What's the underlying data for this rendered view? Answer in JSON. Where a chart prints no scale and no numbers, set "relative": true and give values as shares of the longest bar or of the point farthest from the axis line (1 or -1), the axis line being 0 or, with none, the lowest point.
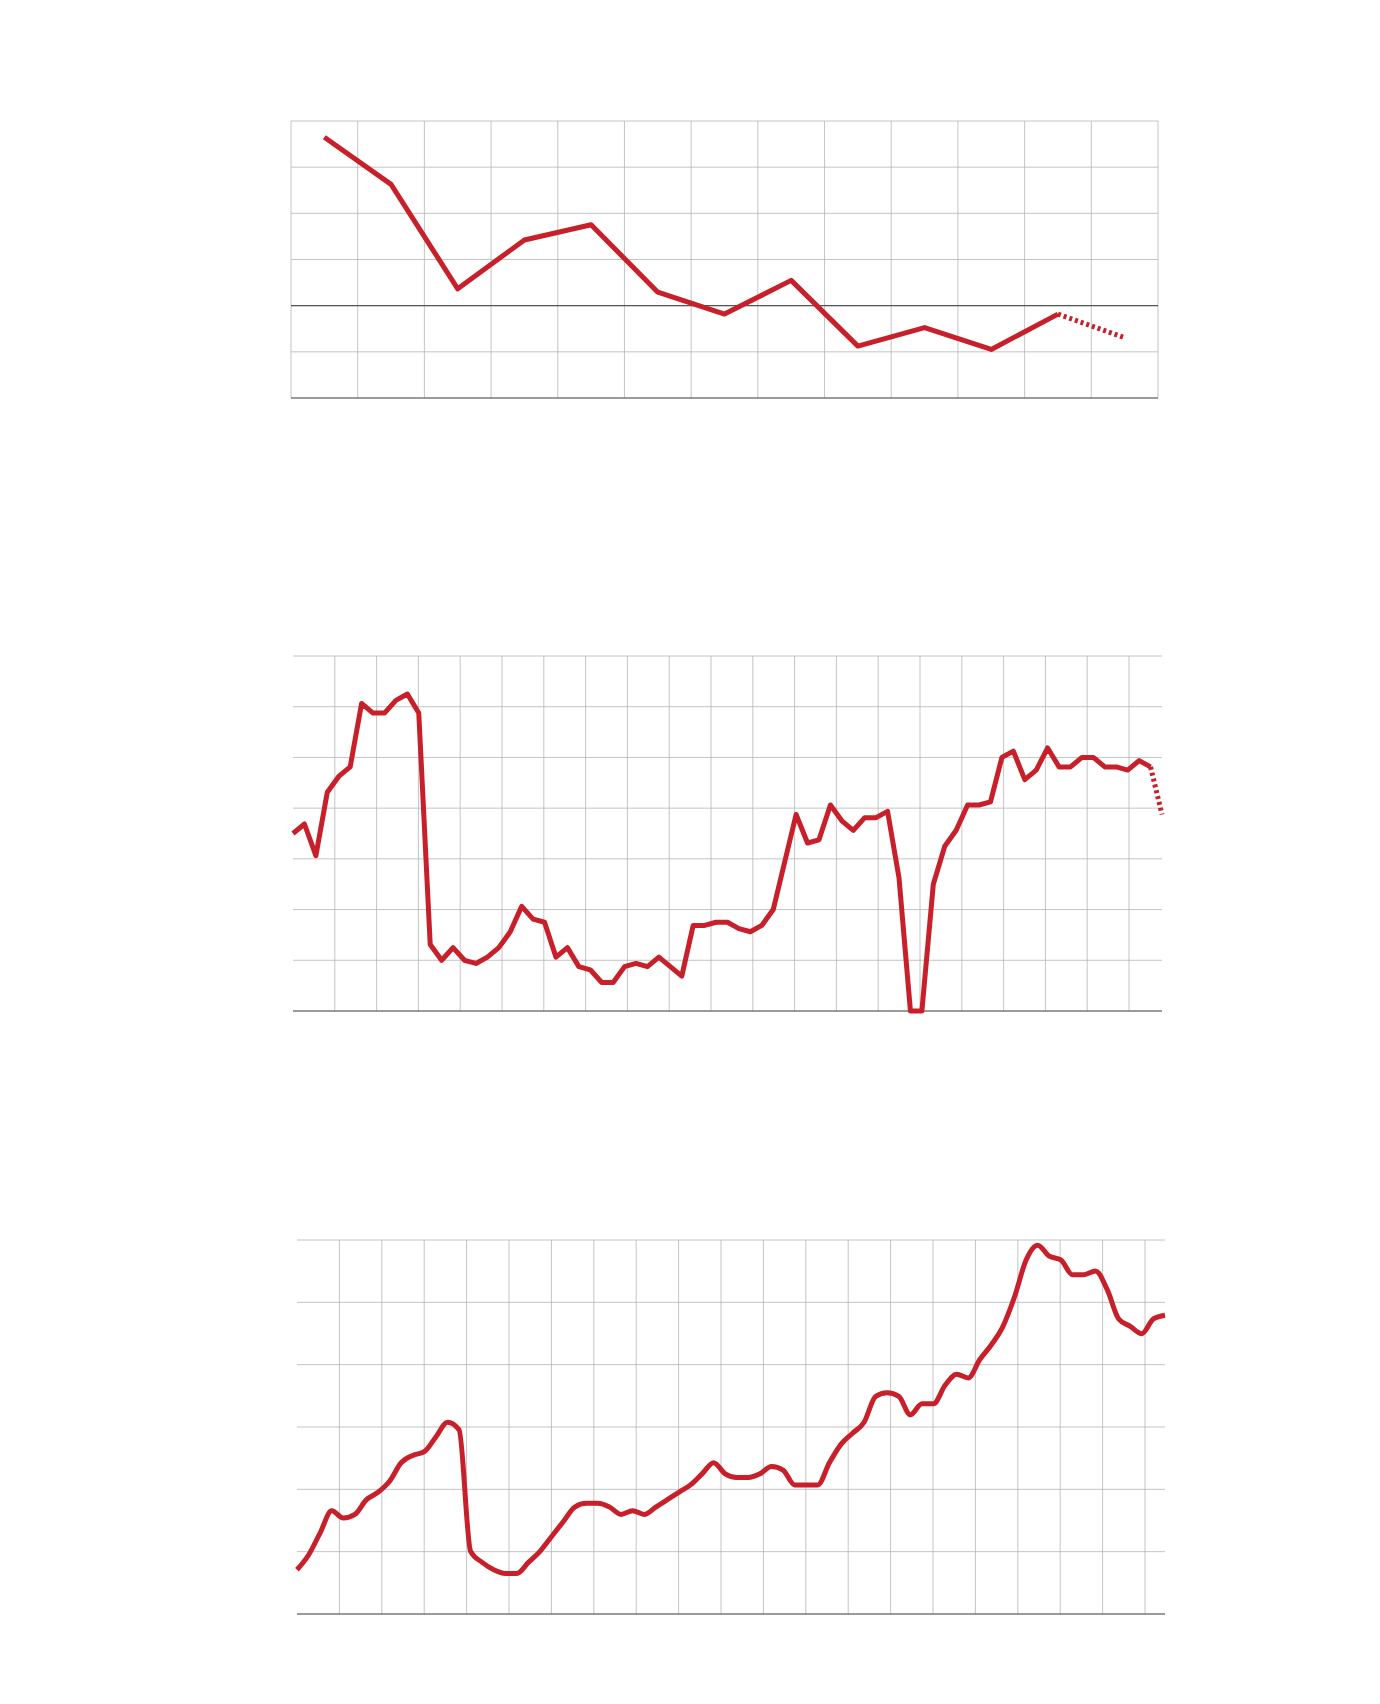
{
  "chart_data": [
    {
      "type": "line",
      "relative": true,
      "grid": true,
      "categories": [
        null,
        null,
        null,
        null,
        null,
        null,
        null,
        null,
        null,
        null,
        null,
        null,
        null
      ],
      "series": [
        {
          "color": "#c8202a",
          "line_style": "solid",
          "values": [
            1,
            0.72,
            0.1,
            0.39,
            0.48,
            0.08,
            -0.05,
            0.15,
            -0.24,
            -0.13,
            -0.26,
            -0.05,
            null
          ]
        },
        {
          "color": "#c8202a",
          "line_style": "dotted",
          "values": [
            null,
            null,
            null,
            null,
            null,
            null,
            null,
            null,
            null,
            null,
            null,
            -0.05,
            -0.19
          ]
        }
      ]
    },
    {
      "type": "line",
      "relative": true,
      "grid": true,
      "categories": [
        null,
        null,
        null,
        null,
        null,
        null,
        null,
        null,
        null,
        null,
        null,
        null,
        null,
        null,
        null,
        null,
        null,
        null,
        null,
        null,
        null,
        null,
        null,
        null,
        null,
        null,
        null,
        null,
        null,
        null,
        null,
        null,
        null,
        null,
        null,
        null,
        null,
        null,
        null,
        null,
        null,
        null,
        null,
        null,
        null,
        null,
        null,
        null,
        null,
        null,
        null,
        null,
        null,
        null,
        null,
        null,
        null,
        null,
        null,
        null,
        null,
        null,
        null,
        null,
        null,
        null,
        null,
        null,
        null,
        null,
        null,
        null,
        null,
        null,
        null,
        null,
        null
      ],
      "series": [
        {
          "color": "#c8202a",
          "line_style": "solid",
          "values": [
            0.56,
            0.59,
            0.49,
            0.69,
            0.74,
            0.77,
            0.97,
            0.94,
            0.94,
            0.98,
            1.0,
            0.94,
            0.21,
            0.16,
            0.2,
            0.16,
            0.15,
            0.17,
            0.2,
            0.25,
            0.33,
            0.29,
            0.28,
            0.17,
            0.2,
            0.14,
            0.13,
            0.09,
            0.09,
            0.14,
            0.15,
            0.14,
            0.17,
            0.14,
            0.11,
            0.27,
            0.27,
            0.28,
            0.28,
            0.26,
            0.25,
            0.27,
            0.32,
            0.47,
            0.62,
            0.53,
            0.54,
            0.65,
            0.6,
            0.57,
            0.61,
            0.61,
            0.63,
            0.42,
            0,
            0,
            0.4,
            0.52,
            0.57,
            0.65,
            0.65,
            0.66,
            0.8,
            0.82,
            0.73,
            0.76,
            0.83,
            0.77,
            0.77,
            0.8,
            0.8,
            0.77,
            0.77,
            0.76,
            0.79,
            0.77,
            null
          ]
        },
        {
          "color": "#c8202a",
          "line_style": "dotted",
          "values": [
            null,
            null,
            null,
            null,
            null,
            null,
            null,
            null,
            null,
            null,
            null,
            null,
            null,
            null,
            null,
            null,
            null,
            null,
            null,
            null,
            null,
            null,
            null,
            null,
            null,
            null,
            null,
            null,
            null,
            null,
            null,
            null,
            null,
            null,
            null,
            null,
            null,
            null,
            null,
            null,
            null,
            null,
            null,
            null,
            null,
            null,
            null,
            null,
            null,
            null,
            null,
            null,
            null,
            null,
            null,
            null,
            null,
            null,
            null,
            null,
            null,
            null,
            null,
            null,
            null,
            null,
            null,
            null,
            null,
            null,
            null,
            null,
            null,
            null,
            null,
            0.77,
            0.62
          ]
        }
      ]
    },
    {
      "type": "line",
      "relative": true,
      "grid": true,
      "categories": [
        null,
        null,
        null,
        null,
        null,
        null,
        null,
        null,
        null,
        null,
        null,
        null,
        null,
        null,
        null,
        null,
        null,
        null,
        null,
        null,
        null,
        null,
        null,
        null,
        null,
        null,
        null,
        null,
        null,
        null,
        null,
        null,
        null,
        null,
        null,
        null,
        null,
        null,
        null,
        null,
        null,
        null,
        null,
        null,
        null,
        null,
        null,
        null,
        null,
        null,
        null,
        null,
        null,
        null,
        null,
        null,
        null,
        null,
        null,
        null,
        null,
        null,
        null,
        null,
        null,
        null,
        null,
        null,
        null,
        null,
        null,
        null,
        null,
        null,
        null,
        null
      ],
      "series": [
        {
          "color": "#c8202a",
          "line_style": "solid",
          "values": [
            0.12,
            0.16,
            0.22,
            0.28,
            0.26,
            0.27,
            0.31,
            0.33,
            0.36,
            0.41,
            0.43,
            0.44,
            0.48,
            0.52,
            0.5,
            0.17,
            0.14,
            0.12,
            0.11,
            0.11,
            0.14,
            0.17,
            0.21,
            0.25,
            0.29,
            0.3,
            0.3,
            0.29,
            0.27,
            0.28,
            0.27,
            0.29,
            0.31,
            0.33,
            0.35,
            0.38,
            0.41,
            0.38,
            0.37,
            0.37,
            0.38,
            0.4,
            0.39,
            0.35,
            0.35,
            0.35,
            0.41,
            0.46,
            0.49,
            0.52,
            0.59,
            0.6,
            0.59,
            0.54,
            0.57,
            0.57,
            0.62,
            0.65,
            0.64,
            0.69,
            0.73,
            0.78,
            0.86,
            0.96,
            1.0,
            0.97,
            0.96,
            0.92,
            0.92,
            0.93,
            0.88,
            0.8,
            0.78,
            0.76,
            0.8,
            0.81
          ]
        }
      ]
    }
  ]
}
